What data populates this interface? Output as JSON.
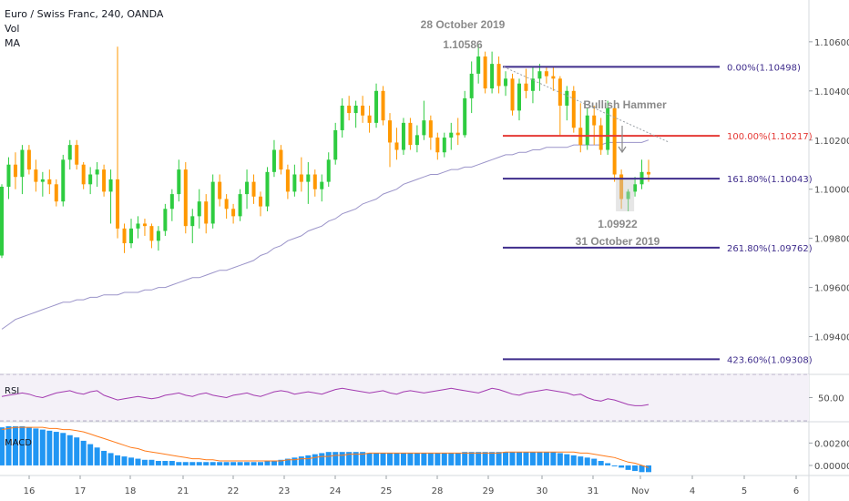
{
  "legend": {
    "symbol_line": "Euro / Swiss Franc, 240, OANDA",
    "vol_label": "Vol",
    "ma_label": "MA"
  },
  "rsi_pane": {
    "label": "RSI",
    "level_label": "50.00"
  },
  "macd_pane": {
    "label": "MACD",
    "tick_labels": [
      "0.00200",
      "0.00000"
    ]
  },
  "colors": {
    "up": "#2ecc40",
    "down": "#ff9800",
    "ma": "#9b94c9",
    "fib_lines": "#3f2d8c",
    "fib_100": "#e53935",
    "rsi": "#a33bb0",
    "macd_hist": "#2196f3",
    "macd_signal": "#ff7b1a",
    "annotation_text": "#8a8a8a",
    "axis_text": "#4a4a4a"
  },
  "annotations": {
    "high_date": "28 October 2019",
    "high_price": "1.10586",
    "pattern": "Bullish Hammer",
    "low_price": "1.09922",
    "low_date": "31 October 2019"
  },
  "chart_data": {
    "type": "candlestick",
    "symbol": "EURCHF",
    "interval": "240",
    "x_tick_labels": [
      "16",
      "17",
      "18",
      "21",
      "22",
      "23",
      "24",
      "25",
      "28",
      "29",
      "30",
      "31",
      "Nov",
      "4",
      "5",
      "6"
    ],
    "y_tick_labels": [
      "1.10600",
      "1.10400",
      "1.10200",
      "1.10000",
      "1.09800",
      "1.09600",
      "1.09400"
    ],
    "y_ticks": [
      1.106,
      1.104,
      1.102,
      1.1,
      1.098,
      1.096,
      1.094
    ],
    "ylim": [
      1.0925,
      1.1077
    ],
    "fib_levels": [
      {
        "label": "0.00%(1.10498)",
        "value": 1.10498
      },
      {
        "label": "100.00%(1.10217)",
        "value": 1.10217
      },
      {
        "label": "161.80%(1.10043)",
        "value": 1.10043
      },
      {
        "label": "261.80%(1.09762)",
        "value": 1.09762
      },
      {
        "label": "423.60%(1.09308)",
        "value": 1.09308
      }
    ],
    "trendline": {
      "from": [
        1.10498,
        "29 Oct"
      ],
      "to": [
        1.1022,
        "31 Oct"
      ]
    },
    "candles": [
      [
        1.0973,
        1.1002,
        1.0972,
        1.1001
      ],
      [
        1.1001,
        1.1013,
        1.0996,
        1.101
      ],
      [
        1.101,
        1.1015,
        1.1,
        1.1005
      ],
      [
        1.1005,
        1.1018,
        1.0998,
        1.1016
      ],
      [
        1.1016,
        1.1018,
        1.1006,
        1.1008
      ],
      [
        1.1008,
        1.1012,
        1.0999,
        1.1003
      ],
      [
        1.1003,
        1.1007,
        1.0997,
        1.1004
      ],
      [
        1.1004,
        1.1008,
        1.0998,
        1.1002
      ],
      [
        1.1002,
        1.1004,
        1.0993,
        1.0995
      ],
      [
        1.0995,
        1.1014,
        1.0993,
        1.1012
      ],
      [
        1.1012,
        1.102,
        1.1008,
        1.1018
      ],
      [
        1.1018,
        1.102,
        1.1008,
        1.101
      ],
      [
        1.101,
        1.1011,
        1.1,
        1.1002
      ],
      [
        1.1002,
        1.1009,
        1.0998,
        1.1006
      ],
      [
        1.1006,
        1.1011,
        1.1001,
        1.1008
      ],
      [
        1.1008,
        1.101,
        1.0997,
        1.0999
      ],
      [
        1.0999,
        1.1008,
        1.0986,
        1.1004
      ],
      [
        1.1004,
        1.1058,
        1.098,
        1.0984
      ],
      [
        1.0984,
        1.0986,
        1.0974,
        1.0978
      ],
      [
        1.0978,
        1.0988,
        1.0976,
        1.0984
      ],
      [
        1.0984,
        1.0989,
        1.098,
        1.0986
      ],
      [
        1.0986,
        1.0988,
        1.0981,
        1.0985
      ],
      [
        1.0985,
        1.0986,
        1.0976,
        1.0979
      ],
      [
        1.0979,
        1.0985,
        1.0975,
        1.0983
      ],
      [
        1.0983,
        1.0994,
        1.0981,
        1.0992
      ],
      [
        1.0992,
        1.1,
        1.0987,
        1.0998
      ],
      [
        1.0998,
        1.1012,
        1.0995,
        1.1008
      ],
      [
        1.1008,
        1.1011,
        1.0982,
        1.0985
      ],
      [
        1.0985,
        1.0992,
        1.0978,
        1.0989
      ],
      [
        1.0989,
        1.1,
        1.0984,
        1.0995
      ],
      [
        1.0995,
        1.0998,
        1.0982,
        1.0986
      ],
      [
        1.0986,
        1.1006,
        1.0984,
        1.1003
      ],
      [
        1.1003,
        1.1006,
        1.0993,
        1.0996
      ],
      [
        1.0996,
        1.0998,
        1.0988,
        1.0992
      ],
      [
        1.0992,
        1.0994,
        1.0986,
        1.0989
      ],
      [
        1.0989,
        1.1,
        1.0987,
        1.0998
      ],
      [
        1.0998,
        1.1008,
        1.0992,
        1.1003
      ],
      [
        1.1003,
        1.1006,
        1.0994,
        1.0997
      ],
      [
        1.0997,
        1.0999,
        1.0989,
        1.0993
      ],
      [
        1.0993,
        1.1009,
        1.0991,
        1.1007
      ],
      [
        1.1007,
        1.102,
        1.1005,
        1.1016
      ],
      [
        1.1016,
        1.1018,
        1.1006,
        1.1008
      ],
      [
        1.1008,
        1.101,
        1.0996,
        1.0999
      ],
      [
        1.0999,
        1.101,
        1.0997,
        1.1006
      ],
      [
        1.1006,
        1.1013,
        1.0999,
        1.1003
      ],
      [
        1.1003,
        1.1011,
        1.0994,
        1.1006
      ],
      [
        1.1006,
        1.1008,
        1.0997,
        1.1
      ],
      [
        1.1,
        1.1006,
        1.0995,
        1.1003
      ],
      [
        1.1003,
        1.1015,
        1.1001,
        1.1012
      ],
      [
        1.1012,
        1.1027,
        1.101,
        1.1024
      ],
      [
        1.1024,
        1.1037,
        1.1021,
        1.1034
      ],
      [
        1.1034,
        1.1038,
        1.1028,
        1.1031
      ],
      [
        1.1031,
        1.1036,
        1.1025,
        1.1034
      ],
      [
        1.1034,
        1.1038,
        1.1027,
        1.103
      ],
      [
        1.103,
        1.1034,
        1.1023,
        1.1027
      ],
      [
        1.1027,
        1.1043,
        1.1025,
        1.104
      ],
      [
        1.104,
        1.1042,
        1.1026,
        1.1028
      ],
      [
        1.1028,
        1.1031,
        1.1009,
        1.1019
      ],
      [
        1.1019,
        1.1025,
        1.1012,
        1.1016
      ],
      [
        1.1016,
        1.1029,
        1.1014,
        1.1027
      ],
      [
        1.1027,
        1.1029,
        1.1016,
        1.1018
      ],
      [
        1.1018,
        1.1026,
        1.1015,
        1.1022
      ],
      [
        1.1022,
        1.1036,
        1.102,
        1.1028
      ],
      [
        1.1028,
        1.103,
        1.1016,
        1.1021
      ],
      [
        1.1021,
        1.1023,
        1.1012,
        1.1015
      ],
      [
        1.1015,
        1.1023,
        1.1013,
        1.1021
      ],
      [
        1.1021,
        1.1027,
        1.1016,
        1.1023
      ],
      [
        1.1023,
        1.1029,
        1.1018,
        1.1022
      ],
      [
        1.1022,
        1.104,
        1.1021,
        1.1037
      ],
      [
        1.1037,
        1.1052,
        1.1031,
        1.1047
      ],
      [
        1.1047,
        1.1059,
        1.1043,
        1.1054
      ],
      [
        1.1054,
        1.1056,
        1.1039,
        1.1041
      ],
      [
        1.1041,
        1.1056,
        1.1039,
        1.1051
      ],
      [
        1.1051,
        1.1054,
        1.1039,
        1.1042
      ],
      [
        1.1042,
        1.1048,
        1.1038,
        1.1045
      ],
      [
        1.1045,
        1.1047,
        1.103,
        1.1032
      ],
      [
        1.1032,
        1.1045,
        1.1028,
        1.1043
      ],
      [
        1.1043,
        1.1049,
        1.1037,
        1.104
      ],
      [
        1.104,
        1.105,
        1.1035,
        1.1045
      ],
      [
        1.1045,
        1.1051,
        1.104,
        1.1048
      ],
      [
        1.1048,
        1.105,
        1.1043,
        1.1046
      ],
      [
        1.1046,
        1.105,
        1.104,
        1.1045
      ],
      [
        1.1045,
        1.1046,
        1.1022,
        1.1034
      ],
      [
        1.1034,
        1.1042,
        1.1028,
        1.104
      ],
      [
        1.104,
        1.1042,
        1.1023,
        1.1025
      ],
      [
        1.1025,
        1.1035,
        1.1015,
        1.1018
      ],
      [
        1.1018,
        1.1033,
        1.1016,
        1.103
      ],
      [
        1.103,
        1.1034,
        1.1018,
        1.1026
      ],
      [
        1.1026,
        1.1029,
        1.1014,
        1.1016
      ],
      [
        1.1016,
        1.1036,
        1.1014,
        1.1033
      ],
      [
        1.1033,
        1.1035,
        1.1003,
        1.1006
      ],
      [
        1.1006,
        1.1008,
        1.0992,
        1.0996
      ],
      [
        1.0996,
        1.1,
        1.0991,
        1.0999
      ],
      [
        1.0999,
        1.1005,
        1.0997,
        1.1002
      ],
      [
        1.1002,
        1.1012,
        1.1,
        1.1007
      ],
      [
        1.1007,
        1.1012,
        1.1003,
        1.1006
      ]
    ],
    "ma_values": [
      1.0943,
      1.0945,
      1.0947,
      1.0948,
      1.0949,
      1.095,
      1.0951,
      1.0952,
      1.0953,
      1.0954,
      1.0954,
      1.0955,
      1.0955,
      1.0956,
      1.0956,
      1.0957,
      1.0957,
      1.0957,
      1.0958,
      1.0958,
      1.0958,
      1.0959,
      1.0959,
      1.096,
      1.096,
      1.0961,
      1.0962,
      1.0963,
      1.0964,
      1.0964,
      1.0965,
      1.0966,
      1.0967,
      1.0967,
      1.0968,
      1.0969,
      1.097,
      1.0971,
      1.0973,
      1.0974,
      1.0976,
      1.0977,
      1.0979,
      1.098,
      1.0981,
      1.0983,
      1.0984,
      1.0985,
      1.0987,
      1.0988,
      1.099,
      1.0991,
      1.0992,
      1.0994,
      1.0995,
      1.0996,
      1.0998,
      1.0999,
      1.1,
      1.1002,
      1.1003,
      1.1004,
      1.1005,
      1.1006,
      1.1006,
      1.1007,
      1.1008,
      1.1008,
      1.1009,
      1.1009,
      1.101,
      1.1011,
      1.1012,
      1.1013,
      1.1014,
      1.1014,
      1.1015,
      1.1015,
      1.1016,
      1.1016,
      1.1017,
      1.1017,
      1.1017,
      1.1017,
      1.1018,
      1.1018,
      1.1018,
      1.1018,
      1.1018,
      1.1019,
      1.1019,
      1.1019,
      1.1019,
      1.1019,
      1.1019,
      1.102
    ],
    "rsi_values": [
      51,
      52,
      53,
      54,
      53,
      51,
      50,
      52,
      54,
      55,
      56,
      54,
      53,
      55,
      56,
      52,
      50,
      48,
      49,
      50,
      51,
      50,
      49,
      50,
      52,
      53,
      54,
      52,
      51,
      53,
      54,
      52,
      51,
      50,
      52,
      53,
      54,
      52,
      51,
      53,
      55,
      56,
      55,
      53,
      54,
      55,
      54,
      53,
      55,
      57,
      58,
      57,
      56,
      55,
      54,
      55,
      56,
      54,
      53,
      55,
      56,
      55,
      54,
      55,
      56,
      57,
      58,
      57,
      56,
      55,
      54,
      56,
      58,
      57,
      55,
      53,
      52,
      54,
      55,
      56,
      57,
      56,
      55,
      54,
      52,
      53,
      50,
      48,
      47,
      49,
      48,
      46,
      44,
      43,
      43,
      44
    ],
    "macd_values": [
      0.0034,
      0.0035,
      0.0035,
      0.0035,
      0.0034,
      0.0033,
      0.0032,
      0.0031,
      0.003,
      0.0029,
      0.0027,
      0.0025,
      0.0022,
      0.0019,
      0.0016,
      0.0013,
      0.0011,
      0.0009,
      0.0008,
      0.0007,
      0.0006,
      0.0005,
      0.0005,
      0.0004,
      0.0004,
      0.0004,
      0.0003,
      0.0003,
      0.0003,
      0.0003,
      0.0003,
      0.0003,
      0.0003,
      0.0003,
      0.0003,
      0.0003,
      0.0003,
      0.0003,
      0.0003,
      0.0004,
      0.0004,
      0.0005,
      0.0006,
      0.0007,
      0.0008,
      0.0009,
      0.001,
      0.0011,
      0.0012,
      0.0012,
      0.0012,
      0.0012,
      0.0012,
      0.0012,
      0.0011,
      0.0011,
      0.0011,
      0.0011,
      0.0011,
      0.0011,
      0.0011,
      0.0011,
      0.0011,
      0.0011,
      0.0011,
      0.0011,
      0.0011,
      0.0011,
      0.0012,
      0.0012,
      0.0012,
      0.0012,
      0.0012,
      0.0012,
      0.0012,
      0.0012,
      0.0012,
      0.0012,
      0.0012,
      0.0012,
      0.0012,
      0.0012,
      0.0011,
      0.001,
      0.0009,
      0.0008,
      0.0007,
      0.0006,
      0.0004,
      0.0002,
      0.0,
      -0.0002,
      -0.0004,
      -0.0005,
      -0.0006,
      -0.0006
    ],
    "macd_signal_values": [
      0.0032,
      0.0033,
      0.0034,
      0.0034,
      0.0034,
      0.0034,
      0.0034,
      0.0033,
      0.0033,
      0.0032,
      0.0032,
      0.0031,
      0.003,
      0.0028,
      0.0026,
      0.0024,
      0.0022,
      0.002,
      0.0018,
      0.0016,
      0.0015,
      0.0013,
      0.0012,
      0.0011,
      0.001,
      0.0009,
      0.0008,
      0.0007,
      0.0006,
      0.0006,
      0.0005,
      0.0005,
      0.0004,
      0.0004,
      0.0004,
      0.0004,
      0.0004,
      0.0004,
      0.0004,
      0.0004,
      0.0004,
      0.0004,
      0.0005,
      0.0005,
      0.0006,
      0.0006,
      0.0007,
      0.0008,
      0.0008,
      0.0009,
      0.0009,
      0.001,
      0.001,
      0.001,
      0.0011,
      0.0011,
      0.0011,
      0.0011,
      0.0011,
      0.0011,
      0.0011,
      0.0011,
      0.0011,
      0.0011,
      0.0011,
      0.0011,
      0.0011,
      0.0011,
      0.0011,
      0.0011,
      0.0011,
      0.0011,
      0.0011,
      0.0011,
      0.0012,
      0.0012,
      0.0012,
      0.0012,
      0.0012,
      0.0012,
      0.0012,
      0.0012,
      0.0012,
      0.0012,
      0.0012,
      0.0011,
      0.0011,
      0.001,
      0.0009,
      0.0008,
      0.0007,
      0.0005,
      0.0003,
      0.0002,
      0.0,
      -0.0002
    ],
    "xlabel": "",
    "ylabel": ""
  }
}
